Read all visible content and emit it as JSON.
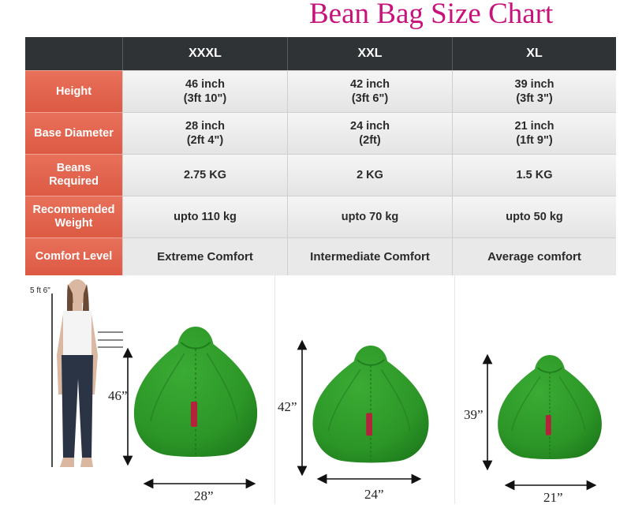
{
  "title": "Bean Bag Size Chart",
  "colors": {
    "title": "#c8127b",
    "header_bg": "#2f3336",
    "label_bg": "#e2614b",
    "cell_bg": "#eeeeee",
    "bag_green": "#2f9a2a",
    "bag_tag": "#b3233a"
  },
  "table": {
    "columns": [
      "XXXL",
      "XXL",
      "XL"
    ],
    "rows": [
      {
        "label": "Height",
        "values": [
          [
            "46 inch",
            "(3ft 10\")"
          ],
          [
            "42 inch",
            "(3ft 6\")"
          ],
          [
            "39 inch",
            "(3ft 3\")"
          ]
        ]
      },
      {
        "label": "Base Diameter",
        "values": [
          [
            "28 inch",
            "(2ft 4\")"
          ],
          [
            "24 inch",
            "(2ft)"
          ],
          [
            "21 inch",
            "(1ft 9\")"
          ]
        ]
      },
      {
        "label_lines": [
          "Beans",
          "Required"
        ],
        "values": [
          "2.75 KG",
          "2 KG",
          "1.5 KG"
        ]
      },
      {
        "label_lines": [
          "Recommended",
          "Weight"
        ],
        "values": [
          "upto 110 kg",
          "upto 70 kg",
          "upto 50 kg"
        ]
      },
      {
        "label": "Comfort Level",
        "values": [
          "Extreme Comfort",
          "Intermediate Comfort",
          "Average comfort"
        ]
      }
    ]
  },
  "illustration": {
    "reference_height": "5 ft 6\"",
    "person_icon": "standing-woman-icon",
    "bag_icon": "bean-bag-icon",
    "bags": [
      {
        "height_label": "46”",
        "width_label": "28”"
      },
      {
        "height_label": "42”",
        "width_label": "24”"
      },
      {
        "height_label": "39”",
        "width_label": "21”"
      }
    ]
  }
}
